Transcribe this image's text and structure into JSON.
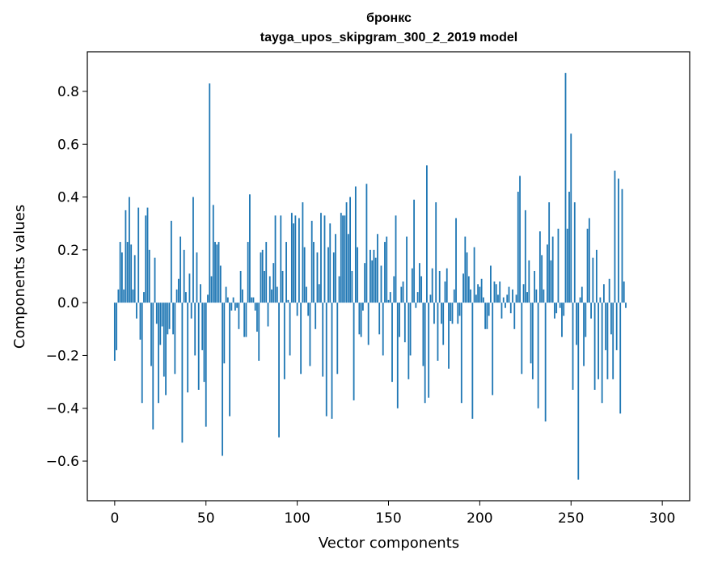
{
  "chart_data": {
    "type": "bar",
    "title": "бронкс",
    "subtitle": "tayga_upos_skipgram_300_2_2019 model",
    "xlabel": "Vector components",
    "ylabel": "Components values",
    "xlim": [
      -15,
      315
    ],
    "ylim": [
      -0.75,
      0.95
    ],
    "x_ticks": [
      0,
      50,
      100,
      150,
      200,
      250,
      300
    ],
    "y_ticks": [
      -0.6,
      -0.4,
      -0.2,
      0.0,
      0.2,
      0.4,
      0.6,
      0.8
    ],
    "y_tick_labels": [
      "−0.6",
      "−0.4",
      "−0.2",
      "0.0",
      "0.2",
      "0.4",
      "0.6",
      "0.8"
    ],
    "x_tick_labels": [
      "0",
      "50",
      "100",
      "150",
      "200",
      "250",
      "300"
    ],
    "bar_color": "#1f77b4",
    "values": [
      -0.22,
      -0.18,
      0.05,
      0.23,
      0.19,
      0.05,
      0.35,
      0.23,
      0.4,
      0.22,
      0.05,
      0.18,
      -0.06,
      0.36,
      -0.14,
      -0.38,
      0.04,
      0.33,
      0.36,
      0.2,
      -0.24,
      -0.48,
      0.17,
      -0.08,
      -0.38,
      -0.16,
      -0.09,
      -0.28,
      -0.35,
      -0.12,
      -0.1,
      0.31,
      -0.12,
      -0.27,
      0.05,
      0.09,
      0.25,
      -0.53,
      0.2,
      0.04,
      -0.34,
      0.11,
      -0.06,
      0.4,
      -0.2,
      0.19,
      -0.33,
      0.07,
      -0.18,
      -0.3,
      -0.47,
      0.03,
      0.83,
      0.1,
      0.37,
      0.23,
      0.22,
      0.23,
      0.14,
      -0.58,
      -0.23,
      0.06,
      0.02,
      -0.43,
      -0.03,
      0.02,
      -0.03,
      -0.02,
      -0.1,
      0.12,
      0.05,
      -0.13,
      -0.13,
      0.23,
      0.41,
      0.02,
      0.02,
      -0.03,
      -0.11,
      -0.22,
      0.19,
      0.2,
      0.12,
      0.23,
      -0.09,
      0.1,
      0.05,
      0.15,
      0.33,
      0.06,
      -0.51,
      0.33,
      0.12,
      -0.29,
      0.23,
      0.01,
      -0.2,
      0.34,
      0.3,
      0.33,
      -0.05,
      0.32,
      -0.27,
      0.38,
      0.21,
      0.06,
      -0.05,
      -0.24,
      0.31,
      0.23,
      -0.1,
      0.19,
      0.07,
      0.34,
      -0.28,
      0.33,
      -0.43,
      0.21,
      0.3,
      -0.44,
      0.19,
      0.26,
      -0.27,
      0.1,
      0.34,
      0.33,
      0.33,
      0.38,
      0.26,
      0.4,
      0.12,
      -0.37,
      0.44,
      0.21,
      -0.12,
      -0.13,
      -0.03,
      0.15,
      0.45,
      -0.16,
      0.2,
      0.16,
      0.2,
      0.17,
      0.26,
      -0.12,
      0.14,
      -0.2,
      0.23,
      0.25,
      0.01,
      0.04,
      -0.3,
      0.1,
      0.33,
      -0.4,
      -0.13,
      0.06,
      0.08,
      -0.15,
      0.25,
      -0.29,
      -0.2,
      0.13,
      0.39,
      -0.02,
      0.04,
      0.15,
      0.1,
      -0.24,
      -0.38,
      0.52,
      -0.36,
      0.03,
      0.13,
      -0.08,
      0.38,
      -0.22,
      0.12,
      -0.08,
      -0.16,
      0.08,
      0.13,
      -0.25,
      -0.07,
      -0.08,
      0.05,
      0.32,
      -0.08,
      -0.05,
      -0.38,
      0.11,
      0.25,
      0.19,
      0.1,
      0.05,
      -0.44,
      0.21,
      0.03,
      0.07,
      0.06,
      0.09,
      0.02,
      -0.1,
      -0.1,
      -0.05,
      0.14,
      -0.35,
      0.08,
      0.07,
      0.03,
      0.08,
      -0.06,
      0.02,
      -0.02,
      0.03,
      0.06,
      -0.04,
      0.05,
      -0.1,
      0.03,
      0.42,
      0.48,
      -0.27,
      0.07,
      0.35,
      0.04,
      0.16,
      -0.23,
      -0.29,
      0.12,
      0.05,
      -0.4,
      0.27,
      0.18,
      0.05,
      -0.45,
      0.22,
      0.38,
      0.16,
      0.25,
      -0.06,
      -0.04,
      0.28,
      -0.02,
      -0.13,
      -0.05,
      0.87,
      0.28,
      0.42,
      0.64,
      -0.33,
      0.38,
      -0.16,
      -0.67,
      0.02,
      0.06,
      -0.24,
      -0.13,
      0.28,
      0.32,
      -0.06,
      0.17,
      -0.33,
      0.2,
      -0.29,
      0.02,
      -0.38,
      0.07,
      -0.18,
      -0.29,
      0.09,
      -0.12,
      -0.29,
      0.5,
      -0.18,
      0.47,
      -0.42,
      0.43,
      0.08,
      -0.02
    ]
  }
}
